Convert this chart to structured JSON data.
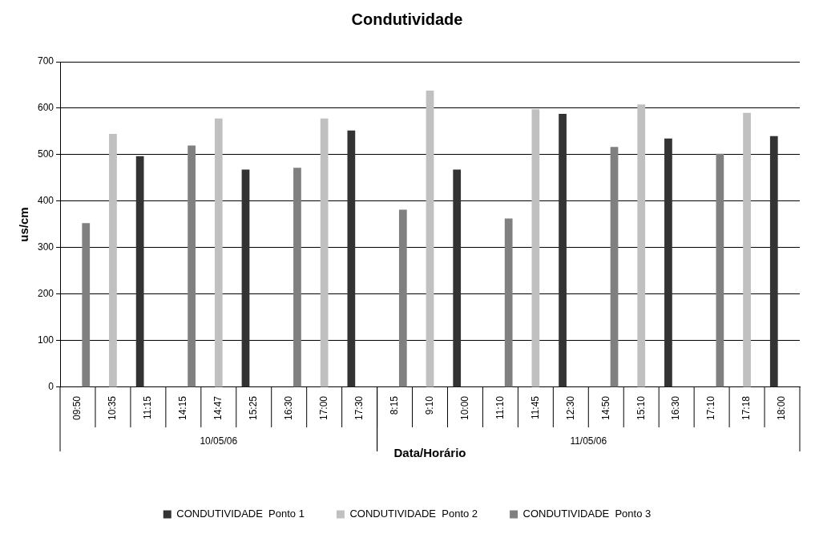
{
  "chart_data": {
    "type": "bar",
    "title": "Condutividade",
    "xlabel": "Data/Horário",
    "ylabel": "us/cm",
    "categories": [
      "09:50",
      "10:35",
      "11:15",
      "14:15",
      "14:47",
      "15:25",
      "16:30",
      "17:00",
      "17:30",
      "8:15",
      "9:10",
      "10:00",
      "11:10",
      "11:45",
      "12:30",
      "14:50",
      "15:10",
      "16:30",
      "17:10",
      "17:18",
      "18:00"
    ],
    "series": [
      {
        "name": "CONDUTIVIDADE  Ponto 1",
        "color": "#333333",
        "values": [
          null,
          null,
          497,
          null,
          null,
          468,
          null,
          null,
          552,
          null,
          null,
          468,
          null,
          null,
          588,
          null,
          null,
          535,
          null,
          null,
          540
        ]
      },
      {
        "name": "CONDUTIVIDADE  Ponto 2",
        "color": "#c0c0c0",
        "values": [
          null,
          545,
          null,
          null,
          578,
          null,
          null,
          578,
          null,
          null,
          638,
          null,
          null,
          598,
          null,
          null,
          608,
          null,
          null,
          590,
          null
        ]
      },
      {
        "name": "CONDUTIVIDADE  Ponto 3",
        "color": "#808080",
        "values": [
          353,
          null,
          null,
          520,
          null,
          null,
          472,
          null,
          null,
          382,
          null,
          null,
          363,
          null,
          null,
          517,
          null,
          null,
          502,
          null,
          null
        ]
      }
    ],
    "annotations": [
      "10/05/06",
      "11/05/06"
    ],
    "ylim": [
      0,
      700
    ],
    "yticks": [
      0,
      100,
      200,
      300,
      400,
      500,
      600,
      700
    ],
    "grid": "y",
    "legend": "bottom"
  }
}
